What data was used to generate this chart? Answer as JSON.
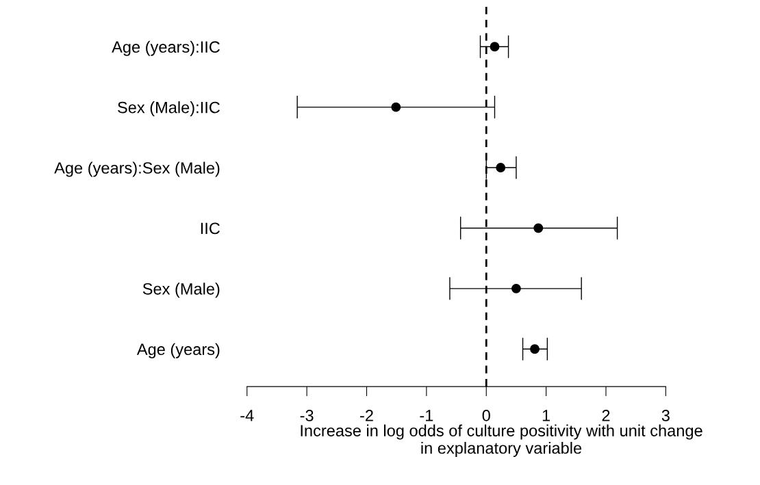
{
  "chart_data": {
    "type": "scatter",
    "orientation": "horizontal",
    "categories": [
      "Age (years):IIC",
      "Sex (Male):IIC",
      "Age (years):Sex (Male)",
      "IIC",
      "Sex (Male)",
      "Age (years)"
    ],
    "values": [
      0.14,
      -1.51,
      0.24,
      0.87,
      0.5,
      0.81
    ],
    "errors": [
      [
        -0.1,
        0.37
      ],
      [
        -3.16,
        0.14
      ],
      [
        0.0,
        0.5
      ],
      [
        -0.43,
        2.19
      ],
      [
        -0.61,
        1.59
      ],
      [
        0.61,
        1.02
      ]
    ],
    "color": "#000000",
    "marker": "circle",
    "grid": false,
    "xlim": [
      -4,
      3
    ],
    "xticks": [
      -4,
      -3,
      -2,
      -1,
      0,
      1,
      2,
      3
    ],
    "xlabel": "Increase in log odds of culture positivity with unit change\nin explanatory variable",
    "ref_lines": [
      {
        "axis": "x",
        "value": 0,
        "line_style": "dashed",
        "color": "#000000"
      }
    ]
  }
}
